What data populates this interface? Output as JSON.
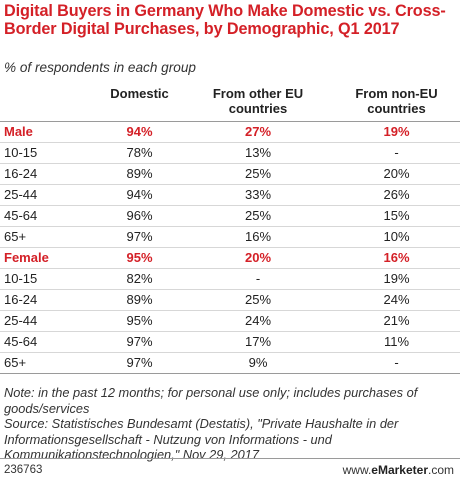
{
  "title": "Digital Buyers in Germany Who Make Domestic vs. Cross-Border Digital Purchases, by Demographic, Q1 2017",
  "subtitle": "% of respondents in each group",
  "colors": {
    "accent": "#d42027",
    "text": "#222222",
    "rule": "#9a9a9a"
  },
  "chart_data": {
    "type": "table",
    "title": "Digital Buyers in Germany Who Make Domestic vs. Cross-Border Digital Purchases, by Demographic, Q1 2017",
    "subtitle": "% of respondents in each group",
    "columns": [
      "",
      "Domestic",
      "From other EU countries",
      "From non-EU countries"
    ],
    "rows": [
      {
        "label": "Male",
        "group": true,
        "values": [
          "94%",
          "27%",
          "19%"
        ]
      },
      {
        "label": "10-15",
        "values": [
          "78%",
          "13%",
          "-"
        ]
      },
      {
        "label": "16-24",
        "values": [
          "89%",
          "25%",
          "20%"
        ]
      },
      {
        "label": "25-44",
        "values": [
          "94%",
          "33%",
          "26%"
        ]
      },
      {
        "label": "45-64",
        "values": [
          "96%",
          "25%",
          "15%"
        ]
      },
      {
        "label": "65+",
        "values": [
          "97%",
          "16%",
          "10%"
        ]
      },
      {
        "label": "Female",
        "group": true,
        "values": [
          "95%",
          "20%",
          "16%"
        ]
      },
      {
        "label": "10-15",
        "values": [
          "82%",
          "-",
          "19%"
        ]
      },
      {
        "label": "16-24",
        "values": [
          "89%",
          "25%",
          "24%"
        ]
      },
      {
        "label": "25-44",
        "values": [
          "95%",
          "24%",
          "21%"
        ]
      },
      {
        "label": "45-64",
        "values": [
          "97%",
          "17%",
          "11%"
        ]
      },
      {
        "label": "65+",
        "values": [
          "97%",
          "9%",
          "-"
        ]
      }
    ]
  },
  "notes": {
    "note": "Note: in the past 12 months; for personal use only; includes purchases of goods/services",
    "source": "Source: Statistisches Bundesamt (Destatis), \"Private Haushalte in der Informationsgesellschaft - Nutzung von Informations - und Kommunikationstechnologien,\" Nov 29, 2017"
  },
  "footer": {
    "id": "236763",
    "brand_prefix": "www.",
    "brand_bold": "eMarketer",
    "brand_suffix": ".com"
  }
}
